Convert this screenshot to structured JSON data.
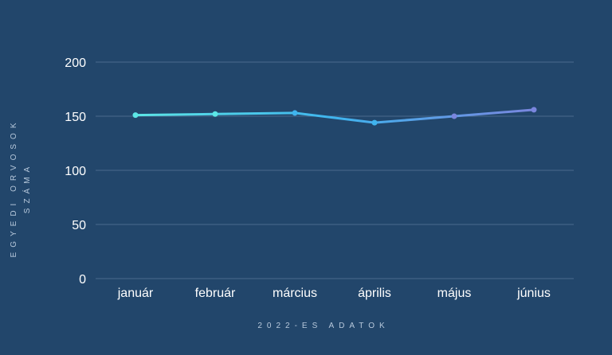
{
  "chart_data": {
    "type": "line",
    "categories": [
      "január",
      "február",
      "március",
      "április",
      "május",
      "június"
    ],
    "series": [
      {
        "values": [
          151,
          152,
          153,
          144,
          150,
          156
        ]
      }
    ],
    "xlabel": "2022-ES ADATOK",
    "ylabel_line1": "EGYEDI ORVOSOK",
    "ylabel_line2": "SZÁMA",
    "ylim": [
      0,
      200
    ],
    "yticks": [
      0,
      50,
      100,
      150,
      200
    ],
    "grid": true,
    "legend": "none",
    "colors": {
      "background": "#22466b",
      "grid": "#4a6a8c",
      "line_start": "#5ce6e6",
      "line_mid": "#3fb4ee",
      "line_end": "#7a86de"
    }
  }
}
